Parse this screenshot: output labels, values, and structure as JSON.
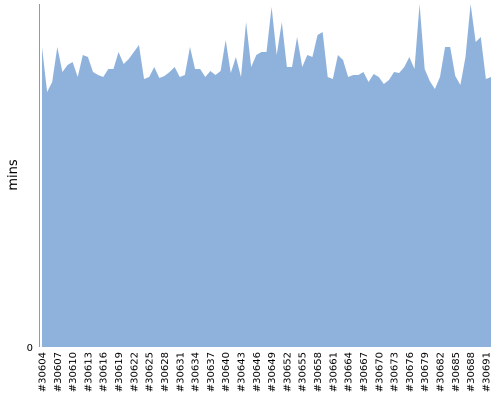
{
  "chart_data": {
    "type": "area",
    "ylabel": "mins",
    "y_tick_labels": [
      "0"
    ],
    "x_tick_labels": [
      "#30604",
      "#30607",
      "#30610",
      "#30613",
      "#30616",
      "#30619",
      "#30622",
      "#30625",
      "#30628",
      "#30631",
      "#30634",
      "#30637",
      "#30640",
      "#30643",
      "#30646",
      "#30649",
      "#30652",
      "#30655",
      "#30658",
      "#30661",
      "#30664",
      "#30667",
      "#30670",
      "#30673",
      "#30676",
      "#30679",
      "#30682",
      "#30685",
      "#30688",
      "#30691"
    ],
    "x_start": 30604,
    "ylim": [
      0,
      340
    ],
    "color": "#8fb2dc",
    "values": [
      300,
      255,
      265,
      300,
      275,
      282,
      285,
      270,
      292,
      290,
      275,
      272,
      270,
      278,
      278,
      295,
      283,
      288,
      295,
      302,
      268,
      270,
      280,
      269,
      271,
      275,
      280,
      270,
      272,
      300,
      278,
      278,
      270,
      276,
      272,
      276,
      307,
      274,
      290,
      270,
      325,
      280,
      292,
      295,
      295,
      340,
      292,
      325,
      280,
      280,
      310,
      280,
      292,
      290,
      312,
      315,
      270,
      268,
      292,
      287,
      270,
      272,
      272,
      275,
      265,
      273,
      270,
      263,
      267,
      275,
      274,
      280,
      290,
      278,
      345,
      278,
      266,
      258,
      270,
      300,
      300,
      271,
      262,
      290,
      345,
      305,
      310,
      268,
      270
    ],
    "grid": false
  }
}
